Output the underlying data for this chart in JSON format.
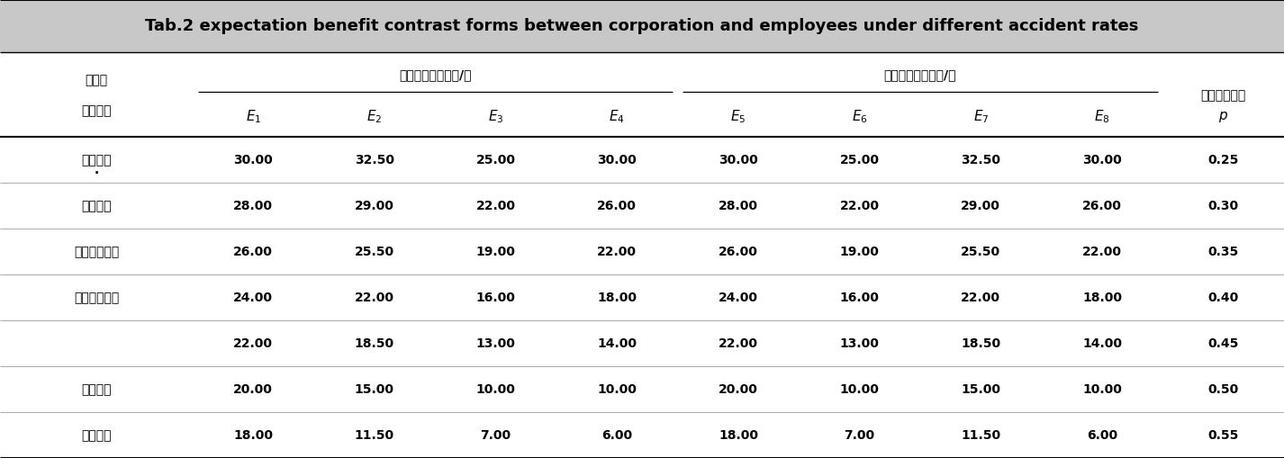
{
  "title": "Tab.2 expectation benefit contrast forms between corporation and employees under different accident rates",
  "col0_header1": "职工与",
  "col0_header2": "企业博弈",
  "group1_header": "职工数学期望效益/元",
  "group2_header": "企业数学期望效益/元",
  "last_header": "发生事故概率",
  "e_labels": [
    "$E_1$",
    "$E_2$",
    "$E_3$",
    "$E_4$",
    "$E_5$",
    "$E_6$",
    "$E_7$",
    "$E_8$",
    "$p$"
  ],
  "rows": [
    {
      "label": "职工俥幸",
      "dot": true,
      "values": [
        "30.00",
        "32.50",
        "25.00",
        "30.00",
        "30.00",
        "25.00",
        "32.50",
        "30.00",
        "0.25"
      ]
    },
    {
      "label": "违章生产",
      "dot": false,
      "values": [
        "28.00",
        "29.00",
        "22.00",
        "26.00",
        "28.00",
        "22.00",
        "29.00",
        "26.00",
        "0.30"
      ]
    },
    {
      "label": "职工的行为偏",
      "dot": false,
      "values": [
        "26.00",
        "25.50",
        "19.00",
        "22.00",
        "26.00",
        "19.00",
        "25.50",
        "22.00",
        "0.35"
      ]
    },
    {
      "label": "好受企业影响",
      "dot": false,
      "values": [
        "24.00",
        "22.00",
        "16.00",
        "18.00",
        "24.00",
        "16.00",
        "22.00",
        "18.00",
        "0.40"
      ]
    },
    {
      "label": "",
      "dot": false,
      "values": [
        "22.00",
        "18.50",
        "13.00",
        "14.00",
        "22.00",
        "13.00",
        "18.50",
        "14.00",
        "0.45"
      ]
    },
    {
      "label": "职工偏好",
      "dot": false,
      "values": [
        "20.00",
        "15.00",
        "10.00",
        "10.00",
        "20.00",
        "10.00",
        "15.00",
        "10.00",
        "0.50"
      ]
    },
    {
      "label": "安全生产",
      "dot": false,
      "values": [
        "18.00",
        "11.50",
        "7.00",
        "6.00",
        "18.00",
        "7.00",
        "11.50",
        "6.00",
        "0.55"
      ]
    }
  ],
  "title_bg": "#c8c8c8",
  "bg_color": "#ffffff",
  "font_size_title": 13,
  "font_size_header": 10,
  "font_size_body": 10
}
